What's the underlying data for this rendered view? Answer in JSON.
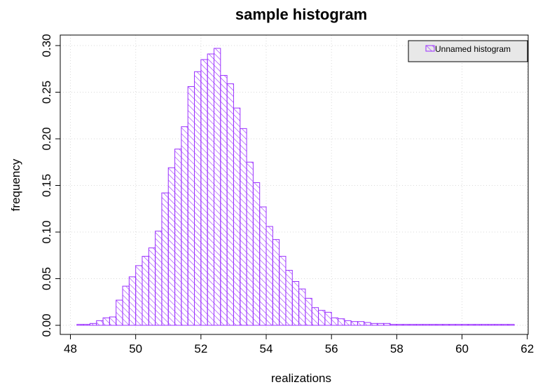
{
  "chart_data": {
    "type": "bar",
    "title": "sample histogram",
    "xlabel": "realizations",
    "ylabel": "frequency",
    "xlim": [
      48,
      62
    ],
    "ylim": [
      0,
      0.3
    ],
    "grid": true,
    "legend_position": "top-right",
    "x_ticks": [
      "48",
      "50",
      "52",
      "54",
      "56",
      "58",
      "60",
      "62"
    ],
    "y_ticks": [
      "0.00",
      "0.05",
      "0.10",
      "0.15",
      "0.20",
      "0.25",
      "0.30"
    ],
    "bin_width": 0.2,
    "series": [
      {
        "name": "Unnamed histogram",
        "color": "#9b30ff",
        "bins_start": [
          48.2,
          48.4,
          48.6,
          48.8,
          49.0,
          49.2,
          49.4,
          49.6,
          49.8,
          50.0,
          50.2,
          50.4,
          50.6,
          50.8,
          51.0,
          51.2,
          51.4,
          51.6,
          51.8,
          52.0,
          52.2,
          52.4,
          52.6,
          52.8,
          53.0,
          53.2,
          53.4,
          53.6,
          53.8,
          54.0,
          54.2,
          54.4,
          54.6,
          54.8,
          55.0,
          55.2,
          55.4,
          55.6,
          55.8,
          56.0,
          56.2,
          56.4,
          56.6,
          56.8,
          57.0,
          57.2,
          57.4,
          57.6,
          57.8,
          58.0,
          58.2,
          58.4,
          58.6,
          58.8,
          59.0,
          59.2,
          59.4,
          59.6,
          59.8,
          60.0,
          60.2,
          60.4,
          60.6,
          60.8,
          61.0,
          61.2,
          61.4
        ],
        "values": [
          0.001,
          0.001,
          0.002,
          0.005,
          0.008,
          0.009,
          0.027,
          0.042,
          0.052,
          0.064,
          0.074,
          0.083,
          0.101,
          0.142,
          0.169,
          0.189,
          0.213,
          0.256,
          0.272,
          0.285,
          0.291,
          0.297,
          0.268,
          0.259,
          0.233,
          0.211,
          0.175,
          0.153,
          0.127,
          0.106,
          0.092,
          0.074,
          0.059,
          0.047,
          0.039,
          0.029,
          0.019,
          0.016,
          0.014,
          0.008,
          0.007,
          0.005,
          0.004,
          0.004,
          0.003,
          0.002,
          0.002,
          0.002,
          0.001,
          0.001,
          0.001,
          0.001,
          0.001,
          0.001,
          0.001,
          0.001,
          0.001,
          0.001,
          0.001,
          0.001,
          0.001,
          0.001,
          0.001,
          0.001,
          0.001,
          0.001,
          0.001
        ]
      }
    ]
  }
}
